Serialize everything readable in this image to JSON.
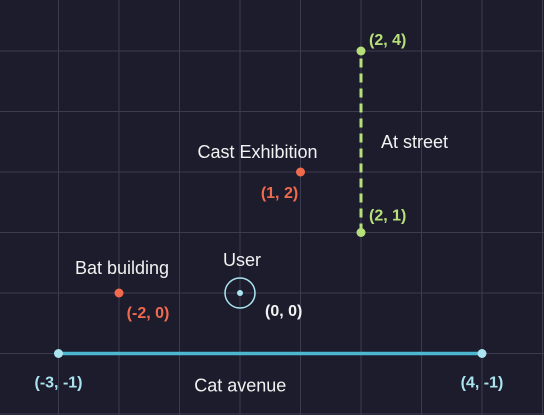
{
  "colors": {
    "background": "#1c1c2c",
    "grid": "#3b3c50",
    "point_orange": "#f06a4d",
    "point_green": "#b7e07a",
    "avenue_blue": "#4db7d0",
    "user_blue": "#a9e4f0",
    "label_white": "#f2f2f2"
  },
  "places": [
    {
      "id": "cast-exhibition",
      "name": "Cast Exhibition",
      "coord_label": "(1, 2)",
      "x": 1,
      "y": 2
    },
    {
      "id": "bat-building",
      "name": "Bat building",
      "coord_label": "(-2, 0)",
      "x": -2,
      "y": 0
    }
  ],
  "user": {
    "name": "User",
    "coord_label": "(0, 0)",
    "x": 0,
    "y": 0
  },
  "street": {
    "name": "At street",
    "start": {
      "coord_label": "(2, 1)",
      "x": 2,
      "y": 1
    },
    "end": {
      "coord_label": "(2, 4)",
      "x": 2,
      "y": 4
    }
  },
  "avenue": {
    "name": "Cat avenue",
    "start": {
      "coord_label": "(-3, -1)",
      "x": -3,
      "y": -1
    },
    "end": {
      "coord_label": "(4, -1)",
      "x": 4,
      "y": -1
    }
  }
}
